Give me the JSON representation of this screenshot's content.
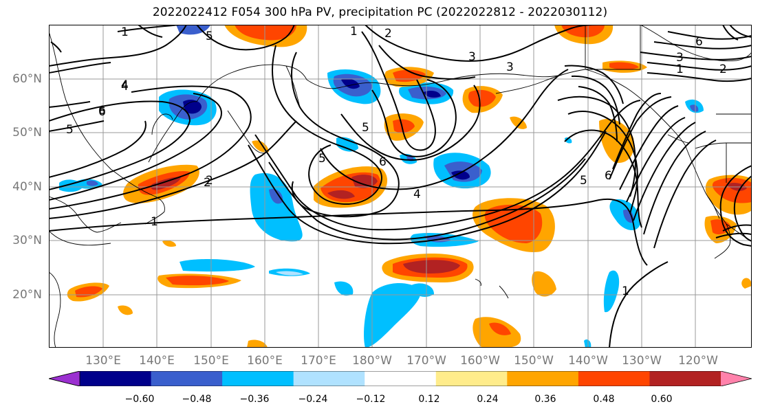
{
  "title": "2022022412 F054 300 hPa PV, precipitation PC (2022022812 - 2022030112)",
  "latitude_labels": [
    "60°N",
    "50°N",
    "40°N",
    "30°N",
    "20°N"
  ],
  "longitude_labels": [
    "130°E",
    "140°E",
    "150°E",
    "160°E",
    "170°E",
    "180°W",
    "170°W",
    "160°W",
    "150°W",
    "140°W",
    "130°W",
    "120°W"
  ],
  "colorbar": {
    "tick_labels": [
      "−0.60",
      "−0.48",
      "−0.36",
      "−0.24",
      "−0.12",
      "0.12",
      "0.24",
      "0.36",
      "0.48",
      "0.60"
    ],
    "colors": [
      "#9b30d0",
      "#00008b",
      "#3a5fcd",
      "#00bfff",
      "#b0e2ff",
      "#ffffff",
      "#ffec8b",
      "#ffa500",
      "#ff4500",
      "#b22222",
      "#ff82ab"
    ]
  },
  "contour_labels": [
    "1",
    "2",
    "4",
    "5",
    "6",
    "1",
    "2",
    "3",
    "5",
    "6",
    "4",
    "5",
    "6",
    "3",
    "1",
    "2",
    "5",
    "6",
    "4",
    "1",
    "1",
    "2",
    "3",
    "5",
    "6"
  ],
  "colors": {
    "contour": "#000000",
    "grid": "#999999",
    "coast": "#000000"
  }
}
